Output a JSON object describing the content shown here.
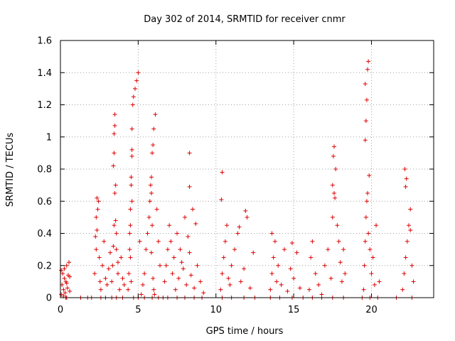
{
  "chart_data": {
    "type": "scatter",
    "title": "Day 302 of 2014, SRMTID for receiver cnmr",
    "xlabel": "GPS time / hours",
    "ylabel": "SRMTID / TECUs",
    "xlim": [
      0,
      24
    ],
    "ylim": [
      0,
      1.6
    ],
    "x_ticks": [
      0,
      5,
      10,
      15,
      20
    ],
    "x_tick_labels": [
      "0",
      "5",
      "10",
      "15",
      "20"
    ],
    "y_ticks": [
      0,
      0.2,
      0.4,
      0.6,
      0.8,
      1.0,
      1.2,
      1.4,
      1.6
    ],
    "y_tick_labels": [
      "0",
      "0.2",
      "0.4",
      "0.6",
      "0.8",
      "1",
      "1.2",
      "1.4",
      "1.6"
    ],
    "grid": true,
    "marker": "+",
    "color": "#e00000",
    "series": [
      {
        "name": "SRMTID",
        "x": [
          0.05,
          0.1,
          0.15,
          0.2,
          0.25,
          0.3,
          0.35,
          0.4,
          0.45,
          0.5,
          0.55,
          0.6,
          0.05,
          0.2,
          0.4,
          0.6,
          0.35,
          0.25,
          2.2,
          2.3,
          2.35,
          2.4,
          2.45,
          2.5,
          2.55,
          2.6,
          2.7,
          2.8,
          2.9,
          3.0,
          3.1,
          3.2,
          2.3,
          2.35,
          2.25,
          3.3,
          3.35,
          3.4,
          3.45,
          3.5,
          3.55,
          3.6,
          3.7,
          3.8,
          3.9,
          4.0,
          4.1,
          3.4,
          3.45,
          3.45,
          3.5,
          3.5,
          3.55,
          3.6,
          3.7,
          4.35,
          4.4,
          4.45,
          4.5,
          4.5,
          4.55,
          4.55,
          4.6,
          4.6,
          4.6,
          4.65,
          4.7,
          4.8,
          4.9,
          5.0,
          5.1,
          4.5,
          4.55,
          4.45,
          4.6,
          5.2,
          5.3,
          5.4,
          5.5,
          5.6,
          5.7,
          5.75,
          5.8,
          5.85,
          5.9,
          5.95,
          6.0,
          6.1,
          6.2,
          6.3,
          6.4,
          5.85,
          5.9,
          5.85,
          5.95,
          6.0,
          6.05,
          6.6,
          6.7,
          6.8,
          6.9,
          7.0,
          7.1,
          7.2,
          7.3,
          7.4,
          7.5,
          7.6,
          7.7,
          7.8,
          7.9,
          8.0,
          8.1,
          8.2,
          8.3,
          8.4,
          8.5,
          8.6,
          8.7,
          8.8,
          9.0,
          9.2,
          8.3,
          8.3,
          10.3,
          10.4,
          10.5,
          10.6,
          10.7,
          10.8,
          10.9,
          11.0,
          11.2,
          11.4,
          11.6,
          11.8,
          12.0,
          12.2,
          12.4,
          10.35,
          10.4,
          11.9,
          11.5,
          13.5,
          13.6,
          13.7,
          13.8,
          13.9,
          14.0,
          14.2,
          14.4,
          14.6,
          14.8,
          15.0,
          15.2,
          15.4,
          13.6,
          14.9,
          16.0,
          16.1,
          16.2,
          16.4,
          16.6,
          16.8,
          17.0,
          17.2,
          17.4,
          17.5,
          17.6,
          17.7,
          17.8,
          17.9,
          18.0,
          18.1,
          18.2,
          18.3,
          17.55,
          17.6,
          17.5,
          17.65,
          19.5,
          19.55,
          19.6,
          19.65,
          19.7,
          19.75,
          19.8,
          19.9,
          20.0,
          20.1,
          20.2,
          20.3,
          20.5,
          19.6,
          19.65,
          19.7,
          19.6,
          19.75,
          19.8,
          19.85,
          22.0,
          22.1,
          22.2,
          22.3,
          22.4,
          22.5,
          22.6,
          22.7,
          22.2,
          22.25,
          22.15,
          22.5
        ],
        "y": [
          0.02,
          0.08,
          0.15,
          0.05,
          0.12,
          0.03,
          0.1,
          0.2,
          0.06,
          0.14,
          0.22,
          0.04,
          0.17,
          0.01,
          0.09,
          0.13,
          0.0,
          0.18,
          0.15,
          0.3,
          0.42,
          0.55,
          0.6,
          0.25,
          0.1,
          0.05,
          0.2,
          0.35,
          0.12,
          0.08,
          0.18,
          0.28,
          0.5,
          0.62,
          0.38,
          0.1,
          0.2,
          0.32,
          0.45,
          0.65,
          0.7,
          0.3,
          0.15,
          0.05,
          0.25,
          0.12,
          0.08,
          0.82,
          0.9,
          1.02,
          1.07,
          1.14,
          0.48,
          0.4,
          0.22,
          0.05,
          0.15,
          0.3,
          0.45,
          0.55,
          0.7,
          0.75,
          0.88,
          0.92,
          1.05,
          1.2,
          1.25,
          1.3,
          1.35,
          1.4,
          0.35,
          0.25,
          0.1,
          0.4,
          0.6,
          0.02,
          0.08,
          0.15,
          0.3,
          0.4,
          0.5,
          0.6,
          0.7,
          0.75,
          0.9,
          0.95,
          1.05,
          1.14,
          0.55,
          0.35,
          0.2,
          0.65,
          0.45,
          0.28,
          0.12,
          0.05,
          0.02,
          0.0,
          0.1,
          0.2,
          0.3,
          0.45,
          0.35,
          0.15,
          0.25,
          0.05,
          0.4,
          0.12,
          0.3,
          0.22,
          0.18,
          0.5,
          0.08,
          0.38,
          0.28,
          0.14,
          0.55,
          0.06,
          0.46,
          0.2,
          0.1,
          0.03,
          0.69,
          0.9,
          0.05,
          0.15,
          0.25,
          0.35,
          0.45,
          0.12,
          0.08,
          0.2,
          0.3,
          0.4,
          0.1,
          0.18,
          0.5,
          0.06,
          0.28,
          0.61,
          0.78,
          0.54,
          0.44,
          0.05,
          0.15,
          0.25,
          0.35,
          0.1,
          0.2,
          0.08,
          0.3,
          0.04,
          0.18,
          0.12,
          0.28,
          0.06,
          0.4,
          0.34,
          0.05,
          0.25,
          0.35,
          0.15,
          0.08,
          0.02,
          0.2,
          0.3,
          0.12,
          0.5,
          0.65,
          0.8,
          0.45,
          0.35,
          0.22,
          0.1,
          0.3,
          0.15,
          0.88,
          0.94,
          0.7,
          0.62,
          0.05,
          0.2,
          0.35,
          0.5,
          0.6,
          0.65,
          0.4,
          0.3,
          0.15,
          0.25,
          0.08,
          0.45,
          0.1,
          0.98,
          1.1,
          1.23,
          1.33,
          1.42,
          1.47,
          0.76,
          0.05,
          0.15,
          0.25,
          0.35,
          0.45,
          0.55,
          0.2,
          0.1,
          0.69,
          0.74,
          0.8,
          0.42
        ]
      }
    ],
    "zero_markers_x": [
      0.4,
      1.3,
      1.75,
      2.0,
      2.6,
      2.9,
      3.3,
      3.6,
      4.0,
      4.7,
      5.0,
      5.4,
      5.9,
      6.3,
      6.9,
      7.5,
      8.0,
      8.6,
      9.1,
      10.4,
      11.0,
      11.8,
      12.5,
      13.5,
      14.1,
      14.9,
      15.6,
      16.2,
      16.8,
      17.5,
      18.2,
      19.4,
      19.9,
      20.4,
      21.6,
      22.6
    ]
  }
}
